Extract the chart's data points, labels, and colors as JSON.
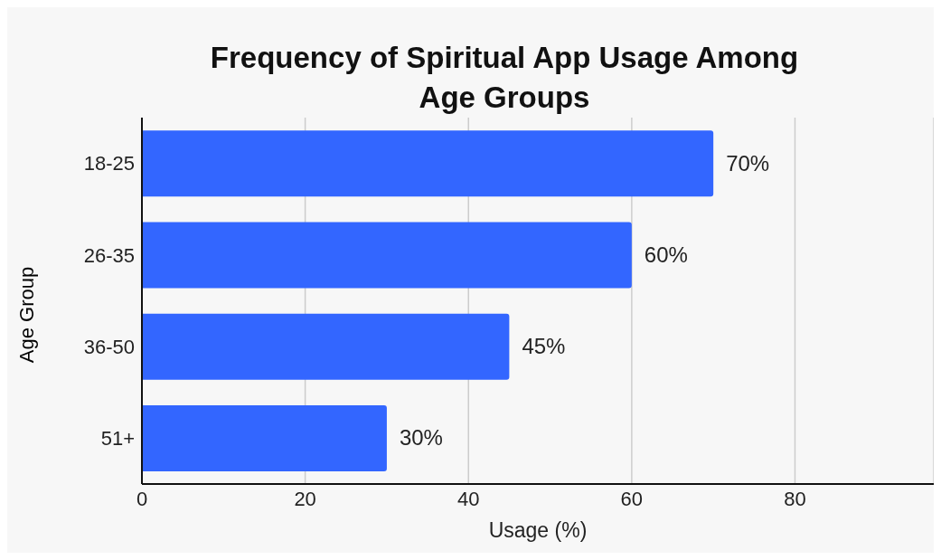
{
  "chart_data": {
    "type": "bar",
    "orientation": "horizontal",
    "title": "Frequency of Spiritual App Usage Among Age Groups",
    "xlabel": "Usage (%)",
    "ylabel": "Age Group",
    "categories": [
      "18-25",
      "26-35",
      "36-50",
      "51+"
    ],
    "values": [
      70,
      60,
      45,
      30
    ],
    "value_labels": [
      "70%",
      "60%",
      "45%",
      "30%"
    ],
    "color": "#3366ff",
    "xlim": [
      0,
      97
    ],
    "xticks": [
      0,
      20,
      40,
      60,
      80
    ],
    "grid": "x"
  }
}
